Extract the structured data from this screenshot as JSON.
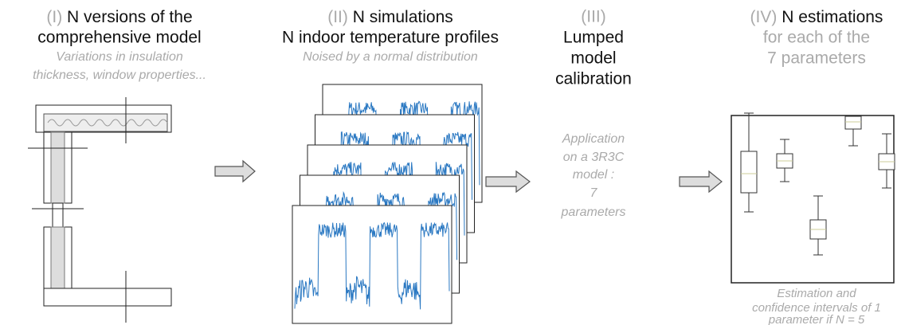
{
  "panels": [
    {
      "number": "(I)",
      "title_lines": [
        "N versions of the",
        "comprehensive model"
      ],
      "subtitle_lines": [
        "Variations in insulation",
        "thickness, window properties..."
      ]
    },
    {
      "number": "(II)",
      "title_lines": [
        "N simulations",
        "N indoor temperature profiles"
      ],
      "subtitle_lines": [
        "Noised by a normal distribution"
      ]
    },
    {
      "number": "(III)",
      "title_lines": [
        "Lumped",
        "model",
        "calibration"
      ],
      "note_lines": [
        "Application",
        "on a 3R3C",
        "model :",
        "7",
        "parameters"
      ]
    },
    {
      "number": "(IV)",
      "title_lines": [
        "N estimations"
      ],
      "subtitle_lines": [
        "for each of the",
        "7 parameters"
      ],
      "caption_lines": [
        "Estimation and",
        "confidence intervals of 1",
        "parameter if N = 5"
      ]
    }
  ]
}
